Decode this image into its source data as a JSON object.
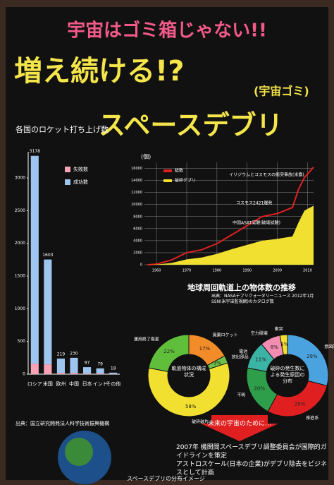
{
  "header": {
    "title": "宇宙はゴミ箱じゃない!!",
    "headline": "増え続ける!?",
    "note": "(宇宙ゴミ)",
    "subtitle": "スペースデブリ"
  },
  "chart_data": [
    {
      "type": "bar",
      "title": "各国のロケット打ち上げ数",
      "categories": [
        "ロシア",
        "米国",
        "欧州",
        "中国",
        "日本",
        "インド",
        "その他"
      ],
      "series": [
        {
          "name": "失敗数",
          "color": "#f7a3b5",
          "values": [
            160,
            150,
            20,
            20,
            10,
            10,
            5
          ]
        },
        {
          "name": "成功数",
          "color": "#9ec4f0",
          "values": [
            3178,
            1603,
            219,
            230,
            97,
            79,
            18
          ]
        }
      ],
      "ylim": [
        0,
        3400
      ],
      "yticks": [
        0,
        500,
        1000,
        1500,
        2000,
        2500,
        3000
      ],
      "footnote": "出典：国立研究開発法人科学技術振興機構"
    },
    {
      "type": "line",
      "title": "地球周回軌道上の物体数の推移",
      "source": "出典：NASAデブリクォータリーニュース 2012年1月 SSN(米宇宙監視網)のカタログ数",
      "ylabel": "(個)",
      "x": [
        1957,
        1960,
        1965,
        1970,
        1975,
        1980,
        1985,
        1990,
        1995,
        2000,
        2005,
        2007,
        2009,
        2012
      ],
      "series": [
        {
          "name": "総数",
          "color": "#e02020",
          "values": [
            0,
            100,
            800,
            2000,
            2500,
            3500,
            5000,
            6500,
            8000,
            8500,
            9500,
            12500,
            14500,
            16200
          ]
        },
        {
          "name": "破砕デブリ",
          "color": "#f2e030",
          "values": [
            0,
            50,
            300,
            900,
            1200,
            1800,
            2600,
            3300,
            4000,
            4300,
            4700,
            7000,
            9000,
            9800
          ]
        }
      ],
      "xlim": [
        1956,
        2012
      ],
      "xticks": [
        1960,
        1970,
        1980,
        1990,
        2000,
        2010
      ],
      "ylim": [
        0,
        17000
      ],
      "yticks": [
        0,
        2000,
        4000,
        6000,
        8000,
        10000,
        12000,
        14000,
        16000
      ],
      "annotations": [
        "イリジウムとコスモスの衝突事故(米露)",
        "コスモス2421爆発",
        "中国ASAT実験(破壊試験)"
      ]
    },
    {
      "type": "pie",
      "title": "軌道物体の構成状況",
      "categories": [
        "廃棄ロケット",
        "放出部品",
        "破砕破片",
        "運用終了衛星"
      ],
      "values": [
        17,
        3,
        58,
        22
      ],
      "value_labels": [
        "17%",
        "3%",
        "58%",
        "22%"
      ],
      "colors": [
        "#f28c28",
        "#6cc24a",
        "#f2e030",
        "#5fbf3a"
      ]
    },
    {
      "type": "pie",
      "title": "破砕の発生数による発生原因の分布",
      "categories": [
        "意図的",
        "推進系",
        "不明",
        "電池",
        "空力破壊",
        "衝突"
      ],
      "values": [
        29,
        29,
        20,
        11,
        8,
        3
      ],
      "value_labels": [
        "29%",
        "29%",
        "20%",
        "11%",
        "8%",
        "3%"
      ],
      "colors": [
        "#4aa3df",
        "#e02020",
        "#2e9e4a",
        "#3bb3a5",
        "#f28cb0",
        "#f2e030"
      ]
    }
  ],
  "footer": {
    "banner": "未来の宇宙のために…",
    "items": [
      "2007年 機関間スペースデブリ調整委員会が国際的ガイドラインを策定",
      "アストロスケール(日本の企業)がデブリ除去をビジネスとして計画"
    ],
    "caption": "スペースデブリの分布イメージ"
  }
}
